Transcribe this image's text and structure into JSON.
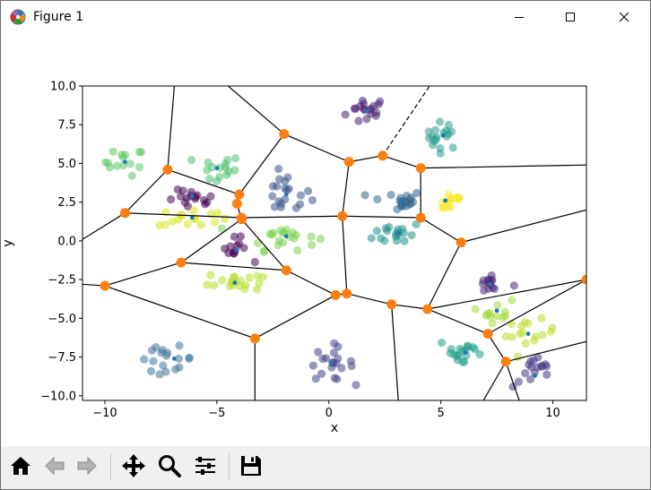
{
  "window": {
    "title": "Figure 1"
  },
  "toolbar": {
    "buttons": [
      {
        "name": "home-icon"
      },
      {
        "name": "back-icon"
      },
      {
        "name": "forward-icon"
      },
      {
        "name": "pan-icon"
      },
      {
        "name": "zoom-icon"
      },
      {
        "name": "configure-subplots-icon"
      },
      {
        "name": "save-icon"
      }
    ]
  },
  "chart_data": {
    "type": "scatter",
    "title": "",
    "xlabel": "x",
    "ylabel": "y",
    "xlim": [
      -11,
      11.5
    ],
    "ylim": [
      -10.3,
      10.0
    ],
    "xticks": [
      -10,
      -5,
      0,
      5,
      10
    ],
    "xtick_labels": [
      "−10",
      "−5",
      "0",
      "5",
      "10"
    ],
    "yticks": [
      -10,
      -7.5,
      -5,
      -2.5,
      0,
      2.5,
      5,
      7.5,
      10
    ],
    "ytick_labels": [
      "−10.0",
      "−7.5",
      "−5.0",
      "−2.5",
      "0.0",
      "2.5",
      "5.0",
      "7.5",
      "10.0"
    ],
    "grid": false,
    "clusters": [
      {
        "center": [
          1.7,
          8.4
        ],
        "spread": [
          0.85,
          0.85
        ],
        "n": 18,
        "color": "#482173"
      },
      {
        "center": [
          5.1,
          6.8
        ],
        "spread": [
          0.7,
          0.8
        ],
        "n": 18,
        "color": "#2a9d8f"
      },
      {
        "center": [
          -9.1,
          5.1
        ],
        "spread": [
          0.8,
          0.8
        ],
        "n": 14,
        "color": "#5ec962"
      },
      {
        "center": [
          -5.0,
          4.6
        ],
        "spread": [
          1.0,
          0.9
        ],
        "n": 15,
        "color": "#4ac16d"
      },
      {
        "center": [
          -1.9,
          3.0
        ],
        "spread": [
          1.0,
          1.2
        ],
        "n": 20,
        "color": "#3b528b"
      },
      {
        "center": [
          -6.1,
          2.6
        ],
        "spread": [
          1.0,
          0.6
        ],
        "n": 16,
        "color": "#440154"
      },
      {
        "center": [
          -6.1,
          1.5
        ],
        "spread": [
          1.4,
          0.6
        ],
        "n": 16,
        "color": "#d8e219"
      },
      {
        "center": [
          3.0,
          2.6
        ],
        "spread": [
          1.1,
          0.6
        ],
        "n": 20,
        "color": "#31688e"
      },
      {
        "center": [
          5.4,
          2.6
        ],
        "spread": [
          0.6,
          0.7
        ],
        "n": 14,
        "color": "#fde725"
      },
      {
        "center": [
          3.1,
          0.5
        ],
        "spread": [
          1.0,
          0.7
        ],
        "n": 18,
        "color": "#21918c"
      },
      {
        "center": [
          -2.1,
          0.3
        ],
        "spread": [
          1.4,
          0.8
        ],
        "n": 22,
        "color": "#7ad151"
      },
      {
        "center": [
          -4.2,
          -0.6
        ],
        "spread": [
          0.6,
          0.7
        ],
        "n": 12,
        "color": "#440154"
      },
      {
        "center": [
          -4.2,
          -2.6
        ],
        "spread": [
          1.1,
          0.6
        ],
        "n": 20,
        "color": "#b5de2b"
      },
      {
        "center": [
          7.2,
          -2.8
        ],
        "spread": [
          0.7,
          0.6
        ],
        "n": 14,
        "color": "#482878"
      },
      {
        "center": [
          7.5,
          -4.5
        ],
        "spread": [
          0.6,
          0.7
        ],
        "n": 12,
        "color": "#a0da39"
      },
      {
        "center": [
          9.0,
          -6.0
        ],
        "spread": [
          1.0,
          0.8
        ],
        "n": 16,
        "color": "#bddf26"
      },
      {
        "center": [
          6.0,
          -7.2
        ],
        "spread": [
          1.0,
          0.9
        ],
        "n": 18,
        "color": "#1f9e89"
      },
      {
        "center": [
          -7.3,
          -7.6
        ],
        "spread": [
          1.2,
          0.7
        ],
        "n": 18,
        "color": "#3e749b"
      },
      {
        "center": [
          0.1,
          -7.9
        ],
        "spread": [
          0.9,
          1.0
        ],
        "n": 20,
        "color": "#414487"
      },
      {
        "center": [
          9.2,
          -8.5
        ],
        "spread": [
          0.9,
          0.9
        ],
        "n": 16,
        "color": "#443983"
      }
    ],
    "centroids": [
      [
        1.7,
        8.4
      ],
      [
        5.1,
        6.8
      ],
      [
        -9.1,
        5.1
      ],
      [
        -5.0,
        4.7
      ],
      [
        -1.9,
        3.0
      ],
      [
        -6.1,
        2.9
      ],
      [
        -6.1,
        1.5
      ],
      [
        3.2,
        2.5
      ],
      [
        5.2,
        2.6
      ],
      [
        3.1,
        0.5
      ],
      [
        -1.9,
        0.3
      ],
      [
        -4.1,
        -0.6
      ],
      [
        -4.2,
        -2.7
      ],
      [
        7.2,
        -2.8
      ],
      [
        7.5,
        -4.5
      ],
      [
        8.9,
        -6.0
      ],
      [
        6.1,
        -7.2
      ],
      [
        -6.9,
        -7.6
      ],
      [
        0.1,
        -7.9
      ],
      [
        9.2,
        -8.7
      ]
    ],
    "vertices": [
      [
        -7.2,
        4.6
      ],
      [
        -9.1,
        1.8
      ],
      [
        -4.0,
        3.0
      ],
      [
        -4.1,
        2.4
      ],
      [
        -3.9,
        1.5
      ],
      [
        -3.9,
        1.4
      ],
      [
        -2.0,
        6.9
      ],
      [
        0.9,
        5.1
      ],
      [
        2.4,
        5.5
      ],
      [
        4.1,
        4.7
      ],
      [
        0.6,
        1.6
      ],
      [
        4.1,
        1.5
      ],
      [
        5.9,
        -0.1
      ],
      [
        -6.6,
        -1.4
      ],
      [
        -10.0,
        -2.9
      ],
      [
        -1.9,
        -1.9
      ],
      [
        0.3,
        -3.5
      ],
      [
        0.8,
        -3.4
      ],
      [
        2.8,
        -4.1
      ],
      [
        4.4,
        -4.4
      ],
      [
        7.1,
        -6.0
      ],
      [
        7.9,
        -7.8
      ],
      [
        -3.3,
        -6.3
      ],
      [
        11.5,
        -2.5
      ]
    ],
    "edges": [
      [
        [
          -7.2,
          4.6
        ],
        [
          -6.9,
          10.0
        ]
      ],
      [
        [
          -7.2,
          4.6
        ],
        [
          -9.1,
          1.8
        ]
      ],
      [
        [
          -7.2,
          4.6
        ],
        [
          -4.0,
          3.0
        ]
      ],
      [
        [
          -9.1,
          1.8
        ],
        [
          -11.0,
          0.1
        ]
      ],
      [
        [
          -9.1,
          1.8
        ],
        [
          -3.9,
          1.5
        ]
      ],
      [
        [
          -4.0,
          3.0
        ],
        [
          -2.0,
          6.9
        ]
      ],
      [
        [
          -4.0,
          3.0
        ],
        [
          -4.1,
          2.4
        ]
      ],
      [
        [
          -4.1,
          2.4
        ],
        [
          -3.9,
          1.4
        ]
      ],
      [
        [
          -2.0,
          6.9
        ],
        [
          -4.5,
          10.0
        ]
      ],
      [
        [
          -2.0,
          6.9
        ],
        [
          0.9,
          5.1
        ]
      ],
      [
        [
          0.9,
          5.1
        ],
        [
          2.4,
          5.5
        ]
      ],
      [
        [
          0.9,
          5.1
        ],
        [
          0.6,
          1.6
        ]
      ],
      [
        [
          2.4,
          5.5
        ],
        [
          4.1,
          4.7
        ]
      ],
      [
        [
          4.1,
          4.7
        ],
        [
          11.5,
          4.9
        ]
      ],
      [
        [
          4.1,
          4.7
        ],
        [
          4.1,
          1.5
        ]
      ],
      [
        [
          -3.9,
          1.5
        ],
        [
          0.6,
          1.6
        ]
      ],
      [
        [
          0.6,
          1.6
        ],
        [
          4.1,
          1.5
        ]
      ],
      [
        [
          4.1,
          1.5
        ],
        [
          5.9,
          -0.1
        ]
      ],
      [
        [
          5.9,
          -0.1
        ],
        [
          11.5,
          2.0
        ]
      ],
      [
        [
          5.9,
          -0.1
        ],
        [
          4.4,
          -4.4
        ]
      ],
      [
        [
          -3.9,
          1.4
        ],
        [
          -6.6,
          -1.4
        ]
      ],
      [
        [
          -3.9,
          1.4
        ],
        [
          -1.9,
          -1.9
        ]
      ],
      [
        [
          -6.6,
          -1.4
        ],
        [
          -10.0,
          -2.9
        ]
      ],
      [
        [
          -6.6,
          -1.4
        ],
        [
          -1.9,
          -1.9
        ]
      ],
      [
        [
          -10.0,
          -2.9
        ],
        [
          -11.0,
          -2.8
        ]
      ],
      [
        [
          -10.0,
          -2.9
        ],
        [
          -3.3,
          -6.3
        ]
      ],
      [
        [
          -1.9,
          -1.9
        ],
        [
          0.3,
          -3.5
        ]
      ],
      [
        [
          0.3,
          -3.5
        ],
        [
          0.8,
          -3.4
        ]
      ],
      [
        [
          0.3,
          -3.5
        ],
        [
          -3.3,
          -6.3
        ]
      ],
      [
        [
          0.8,
          -3.4
        ],
        [
          0.6,
          1.6
        ]
      ],
      [
        [
          0.8,
          -3.4
        ],
        [
          2.8,
          -4.1
        ]
      ],
      [
        [
          2.8,
          -4.1
        ],
        [
          4.4,
          -4.4
        ]
      ],
      [
        [
          2.8,
          -4.1
        ],
        [
          3.1,
          -10.3
        ]
      ],
      [
        [
          4.4,
          -4.4
        ],
        [
          11.5,
          -2.5
        ]
      ],
      [
        [
          4.4,
          -4.4
        ],
        [
          7.1,
          -6.0
        ]
      ],
      [
        [
          7.1,
          -6.0
        ],
        [
          11.5,
          -2.5
        ]
      ],
      [
        [
          7.1,
          -6.0
        ],
        [
          7.9,
          -7.8
        ]
      ],
      [
        [
          7.9,
          -7.8
        ],
        [
          11.5,
          -6.5
        ]
      ],
      [
        [
          7.9,
          -7.8
        ],
        [
          8.5,
          -10.3
        ]
      ],
      [
        [
          7.9,
          -7.8
        ],
        [
          6.9,
          -10.3
        ]
      ],
      [
        [
          -3.3,
          -6.3
        ],
        [
          -3.3,
          -10.3
        ]
      ]
    ],
    "dashed_edges": [
      [
        [
          2.4,
          5.5
        ],
        [
          4.5,
          10.0
        ]
      ]
    ],
    "colors": {
      "edge": "#000000",
      "vertex": "#ff7f0e",
      "centroid": "#1f77b4"
    }
  }
}
